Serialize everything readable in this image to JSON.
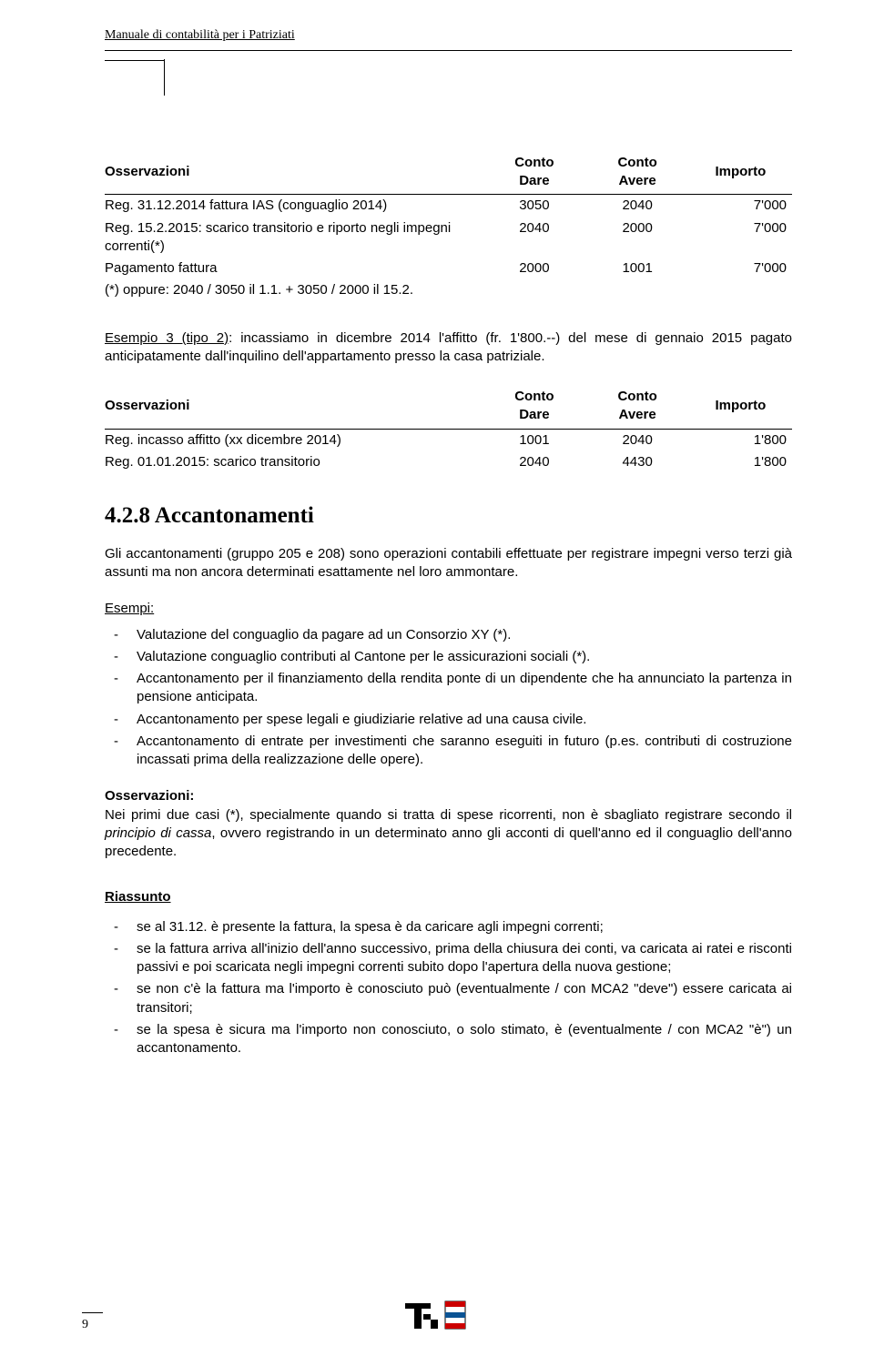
{
  "header": {
    "title": "Manuale di contabilità per i Patriziati"
  },
  "table1": {
    "columns": [
      "Osservazioni",
      "Conto Dare",
      "Conto Avere",
      "Importo"
    ],
    "rows": [
      {
        "desc": "Reg. 31.12.2014 fattura IAS (conguaglio 2014)",
        "dare": "3050",
        "avere": "2040",
        "importo": "7'000"
      },
      {
        "desc": "Reg. 15.2.2015: scarico transitorio e riporto negli impegni correnti(*)",
        "dare": "2040",
        "avere": "2000",
        "importo": "7'000"
      },
      {
        "desc": "Pagamento fattura",
        "dare": "2000",
        "avere": "1001",
        "importo": "7'000"
      },
      {
        "desc": "(*) oppure: 2040 / 3050 il 1.1. + 3050 / 2000 il 15.2.",
        "dare": "",
        "avere": "",
        "importo": ""
      }
    ]
  },
  "example_intro": {
    "lead": "Esempio 3 (tipo 2)",
    "rest": ": incassiamo in dicembre 2014 l'affitto (fr. 1'800.--) del mese di gennaio 2015 pagato anticipatamente dall'inquilino dell'appartamento presso la casa patriziale."
  },
  "table2": {
    "columns": [
      "Osservazioni",
      "Conto Dare",
      "Conto Avere",
      "Importo"
    ],
    "rows": [
      {
        "desc": "Reg. incasso affitto (xx dicembre 2014)",
        "dare": "1001",
        "avere": "2040",
        "importo": "1'800"
      },
      {
        "desc": "Reg. 01.01.2015: scarico transitorio",
        "dare": "2040",
        "avere": "4430",
        "importo": "1'800"
      }
    ]
  },
  "section": {
    "number": "4.2.8",
    "title": "Accantonamenti",
    "intro": "Gli accantonamenti (gruppo 205 e 208) sono operazioni contabili effettuate per registrare impegni verso terzi già assunti ma non ancora determinati esattamente nel loro ammontare."
  },
  "esempi": {
    "label": "Esempi:",
    "items": [
      "Valutazione del conguaglio da pagare ad un Consorzio XY (*).",
      "Valutazione conguaglio contributi al Cantone per le assicurazioni sociali (*).",
      "Accantonamento per il finanziamento della rendita ponte di un dipendente che ha annunciato la partenza in pensione anticipata.",
      "Accantonamento per spese legali e giudiziarie relative ad una causa civile.",
      "Accantonamento di entrate per investimenti che saranno eseguiti in futuro (p.es. contributi di costruzione incassati prima della realizzazione delle opere)."
    ]
  },
  "osservazioni": {
    "label": "Osservazioni:",
    "text_part1": "Nei primi due casi (*), specialmente quando si tratta di spese ricorrenti, non è sbagliato registrare secondo il ",
    "text_italic": "principio di cassa",
    "text_part2": ", ovvero registrando in un determinato anno gli acconti di quell'anno ed il conguaglio dell'anno precedente."
  },
  "riassunto": {
    "label": "Riassunto",
    "items": [
      "se al 31.12. è presente la fattura, la spesa è da caricare agli impegni correnti;",
      "se la fattura arriva all'inizio dell'anno successivo, prima della chiusura dei conti, va caricata ai ratei e risconti passivi e poi scaricata negli impegni correnti subito dopo l'apertura della nuova gestione;",
      "se non c'è la fattura ma l'importo è conosciuto può (eventualmente / con MCA2 \"deve\") essere caricata ai transitori;",
      "se la spesa è sicura ma l'importo non conosciuto, o solo stimato, è (eventualmente / con MCA2 \"è\") un accantonamento."
    ]
  },
  "footer": {
    "page_number": "9"
  },
  "colors": {
    "text": "#000000",
    "background": "#ffffff",
    "rule": "#000000",
    "logo_blue": "#0b5394",
    "logo_red": "#cc0000"
  }
}
